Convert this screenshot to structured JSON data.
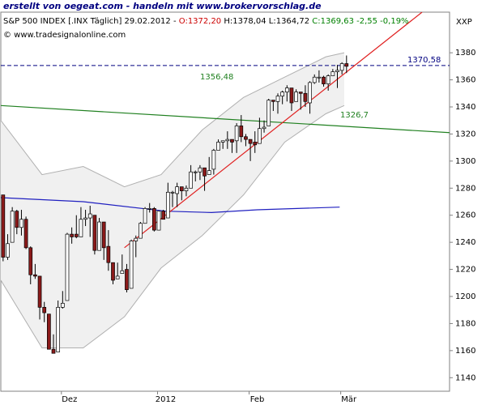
{
  "chart_data": {
    "type": "candlestick",
    "header": {
      "line1": "erstellt von oegeat.com - handeln mit www.brokervorschlag.de",
      "line2": [
        {
          "text": "S&P 500 INDEX [.INX Täglich] 29.02.2012 - ",
          "color": "#000000"
        },
        {
          "text": "O:1372,20",
          "color": "#cc0000"
        },
        {
          "text": " H:1378,04 L:1364,72 ",
          "color": "#000000"
        },
        {
          "text": "C:1369,63 -2,55 -0,19%",
          "color": "#008000"
        }
      ],
      "line3": "© www.tradesignalonline.com",
      "symbol": "XXP"
    },
    "xlim": [
      0,
      98
    ],
    "ylim": [
      1130,
      1410
    ],
    "yticks": [
      1140,
      1160,
      1180,
      1200,
      1220,
      1240,
      1260,
      1280,
      1300,
      1320,
      1340,
      1360,
      1380
    ],
    "xticks": [
      {
        "value": 15,
        "label": "Dez"
      },
      {
        "value": 36,
        "label": "2012"
      },
      {
        "value": 56,
        "label": "Feb"
      },
      {
        "value": 76,
        "label": "Mär"
      }
    ],
    "up_color": "#ffffff",
    "down_color": "#8b1a1a",
    "open": [
      1275,
      1229,
      1240,
      1263,
      1251,
      1257,
      1236,
      1216,
      1215,
      1192,
      1187,
      1161,
      1159,
      1192,
      1197,
      1246,
      1246,
      1244,
      1257,
      1258,
      1260,
      1234,
      1255,
      1237,
      1225,
      1213,
      1217,
      1220,
      1206,
      1241,
      1243,
      1254,
      1265,
      1265,
      1249,
      1263,
      1258,
      1277,
      1276,
      1281,
      1278,
      1280,
      1292,
      1292,
      1295,
      1290,
      1294,
      1308,
      1314,
      1315,
      1316,
      1315,
      1326,
      1318,
      1316,
      1314,
      1313,
      1324,
      1326,
      1345,
      1344,
      1348,
      1351,
      1354,
      1344,
      1351,
      1350,
      1343,
      1358,
      1362,
      1362,
      1357,
      1363,
      1366,
      1367,
      1372
    ],
    "high": [
      1275,
      1246,
      1266,
      1264,
      1264,
      1259,
      1237,
      1224,
      1215,
      1196,
      1187,
      1172,
      1197,
      1204,
      1247,
      1251,
      1260,
      1266,
      1264,
      1267,
      1260,
      1258,
      1255,
      1249,
      1225,
      1225,
      1231,
      1224,
      1242,
      1245,
      1255,
      1266,
      1269,
      1266,
      1263,
      1264,
      1284,
      1278,
      1284,
      1281,
      1282,
      1297,
      1293,
      1297,
      1295,
      1303,
      1309,
      1316,
      1315,
      1322,
      1316,
      1328,
      1334,
      1320,
      1316,
      1322,
      1332,
      1330,
      1346,
      1345,
      1350,
      1352,
      1356,
      1354,
      1353,
      1351,
      1356,
      1359,
      1364,
      1367,
      1363,
      1364,
      1368,
      1371,
      1373,
      1378
    ],
    "low": [
      1226,
      1227,
      1240,
      1246,
      1245,
      1235,
      1209,
      1213,
      1183,
      1181,
      1161,
      1158,
      1159,
      1191,
      1197,
      1239,
      1243,
      1244,
      1252,
      1244,
      1231,
      1234,
      1227,
      1219,
      1209,
      1213,
      1217,
      1203,
      1206,
      1229,
      1243,
      1254,
      1262,
      1248,
      1249,
      1257,
      1258,
      1266,
      1266,
      1271,
      1274,
      1280,
      1285,
      1286,
      1278,
      1290,
      1290,
      1308,
      1309,
      1309,
      1306,
      1306,
      1314,
      1311,
      1300,
      1306,
      1313,
      1321,
      1326,
      1337,
      1335,
      1342,
      1344,
      1337,
      1344,
      1338,
      1340,
      1335,
      1357,
      1358,
      1355,
      1352,
      1363,
      1354,
      1364,
      1365
    ],
    "close": [
      1229,
      1239,
      1263,
      1251,
      1257,
      1236,
      1216,
      1215,
      1192,
      1188,
      1161,
      1158,
      1192,
      1195,
      1246,
      1244,
      1244,
      1257,
      1258,
      1261,
      1234,
      1255,
      1236,
      1225,
      1212,
      1215,
      1219,
      1205,
      1241,
      1243,
      1254,
      1265,
      1265,
      1249,
      1263,
      1257,
      1277,
      1277,
      1281,
      1278,
      1280,
      1292,
      1292,
      1295,
      1289,
      1293,
      1308,
      1314,
      1315,
      1316,
      1314,
      1326,
      1318,
      1316,
      1313,
      1312,
      1324,
      1325,
      1345,
      1344,
      1348,
      1351,
      1354,
      1343,
      1351,
      1350,
      1344,
      1358,
      1362,
      1362,
      1357,
      1363,
      1366,
      1367,
      1372,
      1370
    ],
    "bollinger": {
      "color": "#b0b0b0",
      "x": [
        0,
        9,
        18,
        27,
        35,
        44,
        53,
        62,
        71,
        75
      ],
      "upper": [
        1330,
        1290,
        1296,
        1281,
        1290,
        1323,
        1347,
        1362,
        1377,
        1380
      ],
      "lower": [
        1212,
        1162,
        1162,
        1185,
        1221,
        1245,
        1275,
        1314,
        1335,
        1341
      ]
    },
    "lines": [
      {
        "color": "#2020c0",
        "x": [
          0,
          18,
          36,
          46,
          56,
          74
        ],
        "values": [
          1273,
          1270,
          1263,
          1262,
          1264,
          1266
        ]
      },
      {
        "color": "#208020",
        "x": [
          0,
          98
        ],
        "values": [
          1341,
          1321
        ]
      },
      {
        "color": "#e02020",
        "x": [
          27,
          92
        ],
        "values": [
          1236,
          1410
        ]
      }
    ],
    "level": {
      "value": 1370.58,
      "label": "1370,58",
      "color": "#000080"
    },
    "annotations": [
      {
        "text": "1356,48",
        "color": "#208020"
      },
      {
        "text": "1326,7",
        "color": "#208020"
      }
    ]
  }
}
